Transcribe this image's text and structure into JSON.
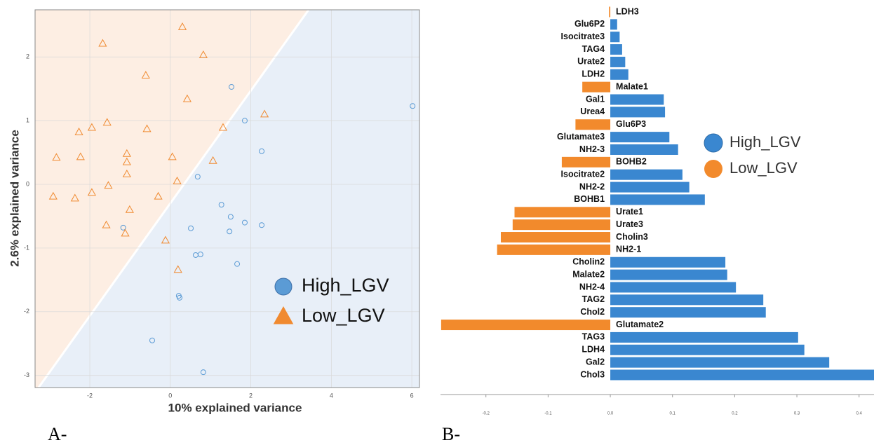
{
  "chart_data": [
    {
      "type": "scatter",
      "panel_label": "A-",
      "x_label": "10% explained variance",
      "y_label": "2.6% explained variance",
      "xlim": [
        -3.36,
        6.19
      ],
      "ylim": [
        -3.19,
        2.74
      ],
      "xticks": [
        -2,
        0,
        2,
        4,
        6
      ],
      "yticks": [
        -3,
        -2,
        -1,
        0,
        1,
        2
      ],
      "grid": true,
      "series": [
        {
          "name": "High_LGV",
          "color": "#5b9bd5",
          "marker": "circle",
          "x": [
            1.52,
            6.02,
            1.85,
            2.27,
            0.68,
            1.27,
            1.5,
            1.85,
            2.27,
            0.51,
            1.47,
            -1.17,
            0.63,
            0.75,
            1.66,
            0.21,
            0.23,
            -0.45,
            0.82
          ],
          "values": [
            1.53,
            1.23,
            1.0,
            0.52,
            0.12,
            -0.32,
            -0.51,
            -0.6,
            -0.64,
            -0.69,
            -0.74,
            -0.68,
            -1.11,
            -1.1,
            -1.25,
            -1.75,
            -1.78,
            -2.45,
            -2.95
          ]
        },
        {
          "name": "Low_LGV",
          "color": "#f08a30",
          "marker": "triangle",
          "x": [
            0.3,
            -1.68,
            0.82,
            -0.61,
            0.42,
            2.34,
            1.31,
            -2.27,
            -1.95,
            -1.57,
            -0.58,
            -1.08,
            -1.08,
            0.05,
            1.06,
            -2.83,
            -2.23,
            -1.08,
            0.17,
            -1.95,
            -1.54,
            -2.91,
            -2.37,
            -0.3,
            -1.01,
            -1.59,
            -1.12,
            -0.12,
            0.19
          ],
          "values": [
            2.47,
            2.21,
            2.03,
            1.71,
            1.34,
            1.1,
            0.89,
            0.82,
            0.89,
            0.97,
            0.87,
            0.48,
            0.35,
            0.43,
            0.37,
            0.42,
            0.43,
            0.16,
            0.05,
            -0.13,
            -0.02,
            -0.19,
            -0.22,
            -0.19,
            -0.4,
            -0.64,
            -0.77,
            -0.88,
            -1.34
          ]
        }
      ]
    },
    {
      "type": "hbar",
      "panel_label": "B-",
      "xlim": [
        -0.273,
        0.424
      ],
      "xticks": [
        -0.2,
        -0.1,
        {
          "value": 0,
          "label": "0.0"
        },
        0.1,
        0.2,
        0.3,
        0.4
      ],
      "legend": [
        {
          "name": "High_LGV",
          "color": "#3a87d0"
        },
        {
          "name": "Low_LGV",
          "color": "#f28a2c"
        }
      ],
      "categories": [
        "LDH3",
        "Glu6P2",
        "Isocitrate3",
        "TAG4",
        "Urate2",
        "LDH2",
        "Malate1",
        "Gal1",
        "Urea4",
        "Glu6P3",
        "Glutamate3",
        "NH2-3",
        "BOHB2",
        "Isocitrate2",
        "NH2-2",
        "BOHB1",
        "Urate1",
        "Urate3",
        "Cholin3",
        "NH2-1",
        "Cholin2",
        "Malate2",
        "NH2-4",
        "TAG2",
        "Chol2",
        "Glutamate2",
        "TAG3",
        "LDH4",
        "Gal2",
        "Chol3"
      ],
      "values": [
        -0.002,
        0.011,
        0.015,
        0.019,
        0.024,
        0.029,
        -0.045,
        0.086,
        0.088,
        -0.056,
        0.095,
        0.109,
        -0.078,
        0.116,
        0.127,
        0.152,
        -0.154,
        -0.157,
        -0.176,
        -0.182,
        0.185,
        0.188,
        0.202,
        0.246,
        0.25,
        -0.272,
        0.302,
        0.312,
        0.352,
        0.424
      ],
      "colors": [
        "#f28a2c",
        "#3a87d0",
        "#3a87d0",
        "#3a87d0",
        "#3a87d0",
        "#3a87d0",
        "#f28a2c",
        "#3a87d0",
        "#3a87d0",
        "#f28a2c",
        "#3a87d0",
        "#3a87d0",
        "#f28a2c",
        "#3a87d0",
        "#3a87d0",
        "#3a87d0",
        "#f28a2c",
        "#f28a2c",
        "#f28a2c",
        "#f28a2c",
        "#3a87d0",
        "#3a87d0",
        "#3a87d0",
        "#3a87d0",
        "#3a87d0",
        "#f28a2c",
        "#3a87d0",
        "#3a87d0",
        "#3a87d0",
        "#3a87d0"
      ]
    }
  ]
}
